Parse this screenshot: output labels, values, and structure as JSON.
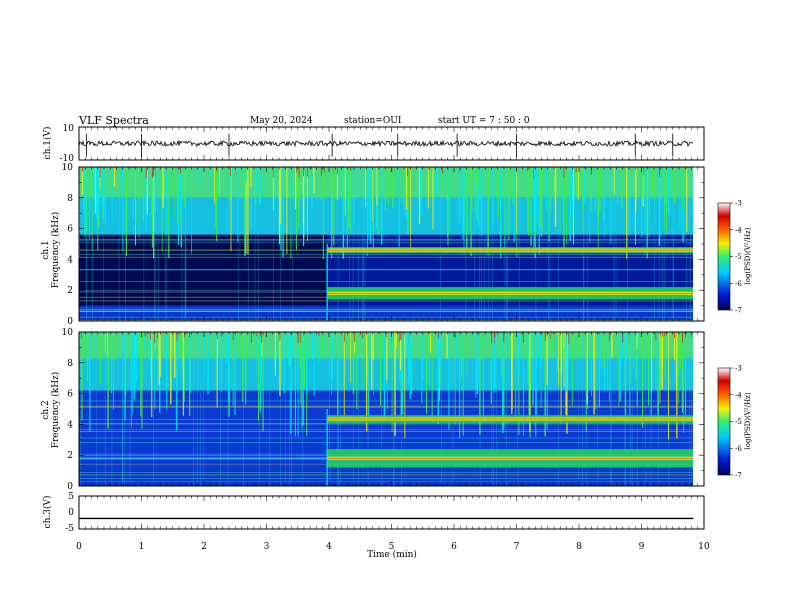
{
  "header": {
    "title": "VLF Spectra",
    "date": "May 20, 2024",
    "station": "station=OUI",
    "start_ut": "start UT = 7 : 50 : 0"
  },
  "chart_data": [
    {
      "type": "line",
      "panel": "ch1-waveform",
      "ylabel": "ch.1(V)",
      "ylim": [
        -10,
        10
      ],
      "yticks": [
        "10",
        "-10"
      ],
      "x_range_min": [
        0,
        9.83
      ],
      "series": [
        {
          "name": "ch.1 amplitude",
          "baseline": 0,
          "noise_amplitude": 1.5
        }
      ]
    },
    {
      "type": "heatmap",
      "panel": "ch1-spectrogram",
      "ylabel": "ch.1 Frequency (kHz)",
      "ylim": [
        0,
        10
      ],
      "yticks": [
        "0",
        "2",
        "4",
        "6",
        "8",
        "10"
      ],
      "xlim": [
        0,
        10
      ],
      "data_extent_min": [
        0,
        9.83
      ],
      "features": [
        {
          "name": "band-1.5kHz",
          "start_min": 3.97,
          "end_min": 9.83,
          "freq_khz": [
            1.4,
            2.2
          ]
        },
        {
          "name": "band-4.5kHz",
          "start_min": 3.97,
          "end_min": 9.83,
          "freq_khz": [
            4.4,
            4.8
          ]
        }
      ],
      "colorbar": {
        "label": "log(PSD)(V²/Hz)",
        "range": [
          -7,
          -3
        ],
        "ticks": [
          "-3",
          "-4",
          "-5",
          "-6",
          "-7"
        ]
      }
    },
    {
      "type": "heatmap",
      "panel": "ch2-spectrogram",
      "ylabel": "ch.2 Frequency (kHz)",
      "ylim": [
        0,
        10
      ],
      "yticks": [
        "0",
        "2",
        "4",
        "6",
        "8",
        "10"
      ],
      "xlim": [
        0,
        10
      ],
      "data_extent_min": [
        0,
        9.83
      ],
      "features": [
        {
          "name": "band-1.7kHz",
          "start_min": 3.97,
          "end_min": 9.83,
          "freq_khz": [
            1.2,
            2.4
          ]
        },
        {
          "name": "band-4.3kHz",
          "start_min": 3.97,
          "end_min": 9.83,
          "freq_khz": [
            4.1,
            4.6
          ]
        }
      ],
      "colorbar": {
        "label": "log(PSD)(V²/Hz)",
        "range": [
          -7,
          -3
        ],
        "ticks": [
          "-3",
          "-4",
          "-5",
          "-6",
          "-7"
        ]
      }
    },
    {
      "type": "line",
      "panel": "ch3-waveform",
      "ylabel": "ch.3(V)",
      "ylim": [
        -5,
        5
      ],
      "yticks": [
        "5",
        "0",
        "-5"
      ],
      "x_range_min": [
        0,
        9.83
      ],
      "series": [
        {
          "name": "ch.3 level",
          "value": -1.8
        }
      ]
    }
  ],
  "x_axis": {
    "label": "Time (min)",
    "range": [
      0,
      10
    ],
    "ticks": [
      "0",
      "1",
      "2",
      "3",
      "4",
      "5",
      "6",
      "7",
      "8",
      "9",
      "10"
    ]
  },
  "colors": {
    "deep": "#000060",
    "blue": "#0020d8",
    "cyan": "#00e8ff",
    "green": "#40f040",
    "yellow": "#f8f000",
    "red": "#e00000"
  }
}
